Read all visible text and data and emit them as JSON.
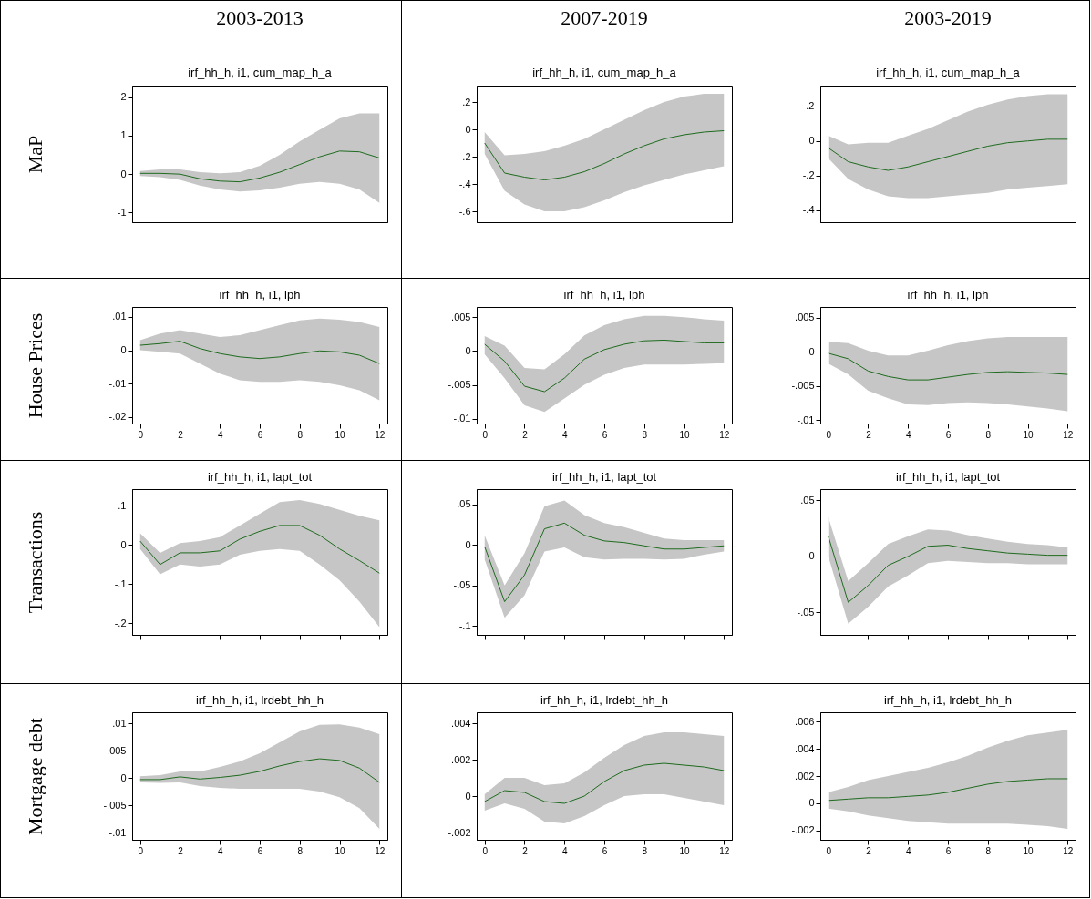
{
  "chart_data": [
    {
      "type": "line",
      "title": "2003-2013",
      "subtitle": "irf_hh_h, i1, cum_map_h_a",
      "ylabel": "MaP",
      "x": [
        0,
        1,
        2,
        3,
        4,
        5,
        6,
        7,
        8,
        9,
        10,
        11,
        12
      ],
      "xlim": [
        -0.4,
        12.4
      ],
      "tick_labels": "y",
      "ylim": [
        -1.25,
        2.3
      ],
      "yticks": [
        -1,
        0,
        1,
        2
      ],
      "series": [
        {
          "color": "#1f6b1f",
          "values": [
            0.02,
            0.02,
            0.0,
            -0.12,
            -0.18,
            -0.2,
            -0.1,
            0.05,
            0.25,
            0.45,
            0.6,
            0.58,
            0.42
          ],
          "lower": [
            -0.05,
            -0.08,
            -0.15,
            -0.3,
            -0.4,
            -0.45,
            -0.42,
            -0.35,
            -0.25,
            -0.2,
            -0.25,
            -0.4,
            -0.75
          ],
          "upper": [
            0.08,
            0.12,
            0.12,
            0.05,
            0.02,
            0.05,
            0.22,
            0.5,
            0.85,
            1.15,
            1.45,
            1.58,
            1.58
          ]
        }
      ]
    },
    {
      "type": "line",
      "title": "2007-2019",
      "subtitle": "irf_hh_h, i1, cum_map_h_a",
      "x": [
        0,
        1,
        2,
        3,
        4,
        5,
        6,
        7,
        8,
        9,
        10,
        11,
        12
      ],
      "xlim": [
        -0.4,
        12.4
      ],
      "tick_labels": "y",
      "ylim": [
        -0.68,
        0.32
      ],
      "yticks": [
        {
          "value": -0.6,
          "label": "-.6"
        },
        {
          "value": -0.4,
          "label": "-.4"
        },
        {
          "value": -0.2,
          "label": "-.2"
        },
        0,
        {
          "value": 0.2,
          "label": ".2"
        }
      ],
      "series": [
        {
          "color": "#1f6b1f",
          "values": [
            -0.1,
            -0.32,
            -0.35,
            -0.37,
            -0.35,
            -0.31,
            -0.25,
            -0.18,
            -0.12,
            -0.07,
            -0.04,
            -0.02,
            -0.01
          ],
          "lower": [
            -0.18,
            -0.45,
            -0.55,
            -0.6,
            -0.6,
            -0.57,
            -0.52,
            -0.46,
            -0.41,
            -0.37,
            -0.33,
            -0.3,
            -0.27
          ],
          "upper": [
            -0.02,
            -0.19,
            -0.18,
            -0.16,
            -0.12,
            -0.07,
            0.0,
            0.07,
            0.14,
            0.2,
            0.24,
            0.26,
            0.26
          ]
        }
      ]
    },
    {
      "type": "line",
      "title": "2003-2019",
      "subtitle": "irf_hh_h, i1, cum_map_h_a",
      "x": [
        0,
        1,
        2,
        3,
        4,
        5,
        6,
        7,
        8,
        9,
        10,
        11,
        12
      ],
      "xlim": [
        -0.4,
        12.4
      ],
      "tick_labels": "y",
      "ylim": [
        -0.47,
        0.32
      ],
      "yticks": [
        {
          "value": -0.4,
          "label": "-.4"
        },
        {
          "value": -0.2,
          "label": "-.2"
        },
        0,
        {
          "value": 0.2,
          "label": ".2"
        }
      ],
      "series": [
        {
          "color": "#1f6b1f",
          "values": [
            -0.04,
            -0.12,
            -0.15,
            -0.17,
            -0.15,
            -0.12,
            -0.09,
            -0.06,
            -0.03,
            -0.01,
            0.0,
            0.01,
            0.01
          ],
          "lower": [
            -0.1,
            -0.22,
            -0.28,
            -0.32,
            -0.33,
            -0.33,
            -0.32,
            -0.31,
            -0.3,
            -0.28,
            -0.27,
            -0.26,
            -0.25
          ],
          "upper": [
            0.03,
            -0.02,
            -0.01,
            -0.01,
            0.03,
            0.07,
            0.12,
            0.17,
            0.21,
            0.24,
            0.26,
            0.27,
            0.27
          ]
        }
      ]
    },
    {
      "type": "line",
      "subtitle": "irf_hh_h, i1, lph",
      "ylabel": "House Prices",
      "x": [
        0,
        1,
        2,
        3,
        4,
        5,
        6,
        7,
        8,
        9,
        10,
        11,
        12
      ],
      "xlim": [
        -0.4,
        12.4
      ],
      "xticks": [
        0,
        2,
        4,
        6,
        8,
        10,
        12
      ],
      "ylim": [
        -0.022,
        0.013
      ],
      "yticks": [
        {
          "value": -0.02,
          "label": "-.02"
        },
        {
          "value": -0.01,
          "label": "-.01"
        },
        0,
        {
          "value": 0.01,
          "label": ".01"
        }
      ],
      "series": [
        {
          "color": "#1f6b1f",
          "values": [
            0.0015,
            0.002,
            0.0027,
            0.0005,
            -0.001,
            -0.002,
            -0.0025,
            -0.002,
            -0.001,
            -0.0002,
            -0.0005,
            -0.0015,
            -0.004
          ],
          "lower": [
            0.0,
            -0.0005,
            -0.001,
            -0.004,
            -0.007,
            -0.009,
            -0.0095,
            -0.0095,
            -0.009,
            -0.0095,
            -0.0105,
            -0.012,
            -0.015
          ],
          "upper": [
            0.003,
            0.005,
            0.006,
            0.005,
            0.004,
            0.0045,
            0.006,
            0.0075,
            0.009,
            0.0095,
            0.0092,
            0.0085,
            0.007
          ]
        }
      ]
    },
    {
      "type": "line",
      "subtitle": "irf_hh_h, i1, lph",
      "x": [
        0,
        1,
        2,
        3,
        4,
        5,
        6,
        7,
        8,
        9,
        10,
        11,
        12
      ],
      "xlim": [
        -0.4,
        12.4
      ],
      "xticks": [
        0,
        2,
        4,
        6,
        8,
        10,
        12
      ],
      "ylim": [
        -0.0107,
        0.0065
      ],
      "yticks": [
        {
          "value": -0.01,
          "label": "-.01"
        },
        {
          "value": -0.005,
          "label": "-.005"
        },
        0,
        {
          "value": 0.005,
          "label": ".005"
        }
      ],
      "series": [
        {
          "color": "#1f6b1f",
          "values": [
            0.001,
            -0.0015,
            -0.0052,
            -0.006,
            -0.004,
            -0.0012,
            0.0002,
            0.001,
            0.0015,
            0.0016,
            0.0014,
            0.0012,
            0.0012
          ],
          "lower": [
            -0.0005,
            -0.004,
            -0.008,
            -0.009,
            -0.007,
            -0.005,
            -0.0035,
            -0.0025,
            -0.002,
            -0.002,
            -0.002,
            -0.0019,
            -0.0018
          ],
          "upper": [
            0.0022,
            0.0008,
            -0.0025,
            -0.0027,
            -0.0005,
            0.0023,
            0.0038,
            0.0047,
            0.0052,
            0.0052,
            0.005,
            0.0047,
            0.0045
          ]
        }
      ]
    },
    {
      "type": "line",
      "subtitle": "irf_hh_h, i1, lph",
      "x": [
        0,
        1,
        2,
        3,
        4,
        5,
        6,
        7,
        8,
        9,
        10,
        11,
        12
      ],
      "xlim": [
        -0.4,
        12.4
      ],
      "xticks": [
        0,
        2,
        4,
        6,
        8,
        10,
        12
      ],
      "ylim": [
        -0.0105,
        0.0066
      ],
      "yticks": [
        {
          "value": -0.01,
          "label": "-.01"
        },
        {
          "value": -0.005,
          "label": "-.005"
        },
        0,
        {
          "value": 0.005,
          "label": ".005"
        }
      ],
      "series": [
        {
          "color": "#1f6b1f",
          "values": [
            -0.0002,
            -0.001,
            -0.0028,
            -0.0036,
            -0.0041,
            -0.0041,
            -0.0037,
            -0.0033,
            -0.003,
            -0.0029,
            -0.003,
            -0.0031,
            -0.0033
          ],
          "lower": [
            -0.0017,
            -0.0033,
            -0.0057,
            -0.0068,
            -0.0077,
            -0.0078,
            -0.0075,
            -0.0074,
            -0.0075,
            -0.0077,
            -0.008,
            -0.0083,
            -0.0087
          ],
          "upper": [
            0.0015,
            0.0013,
            0.0002,
            -0.0005,
            -0.0005,
            0.0002,
            0.001,
            0.0016,
            0.002,
            0.0022,
            0.0022,
            0.0022,
            0.0022
          ]
        }
      ]
    },
    {
      "type": "line",
      "subtitle": "irf_hh_h, i1, lapt_tot",
      "ylabel": "Transactions",
      "x": [
        0,
        1,
        2,
        3,
        4,
        5,
        6,
        7,
        8,
        9,
        10,
        11,
        12
      ],
      "xlim": [
        -0.4,
        12.4
      ],
      "xticks": [
        0,
        2,
        4,
        6,
        8,
        10,
        12
      ],
      "tick_labels": "y",
      "ylim": [
        -0.23,
        0.143
      ],
      "yticks": [
        {
          "value": -0.2,
          "label": "-.2"
        },
        {
          "value": -0.1,
          "label": "-.1"
        },
        0,
        {
          "value": 0.1,
          "label": ".1"
        }
      ],
      "series": [
        {
          "color": "#1f6b1f",
          "values": [
            0.01,
            -0.05,
            -0.02,
            -0.02,
            -0.015,
            0.015,
            0.035,
            0.05,
            0.05,
            0.025,
            -0.01,
            -0.04,
            -0.072
          ],
          "lower": [
            -0.01,
            -0.075,
            -0.05,
            -0.055,
            -0.05,
            -0.025,
            -0.015,
            -0.01,
            -0.015,
            -0.05,
            -0.09,
            -0.145,
            -0.21
          ],
          "upper": [
            0.03,
            -0.02,
            0.005,
            0.01,
            0.02,
            0.05,
            0.08,
            0.11,
            0.115,
            0.105,
            0.09,
            0.075,
            0.063
          ]
        }
      ]
    },
    {
      "type": "line",
      "subtitle": "irf_hh_h, i1, lapt_tot",
      "x": [
        0,
        1,
        2,
        3,
        4,
        5,
        6,
        7,
        8,
        9,
        10,
        11,
        12
      ],
      "xlim": [
        -0.4,
        12.4
      ],
      "xticks": [
        0,
        2,
        4,
        6,
        8,
        10,
        12
      ],
      "tick_labels": "y",
      "ylim": [
        -0.111,
        0.069
      ],
      "yticks": [
        {
          "value": -0.1,
          "label": "-.1"
        },
        {
          "value": -0.05,
          "label": "-.05"
        },
        0,
        {
          "value": 0.05,
          "label": ".05"
        }
      ],
      "series": [
        {
          "color": "#1f6b1f",
          "values": [
            -0.002,
            -0.07,
            -0.037,
            0.02,
            0.027,
            0.012,
            0.005,
            0.003,
            -0.001,
            -0.005,
            -0.005,
            -0.003,
            -0.001
          ],
          "lower": [
            -0.018,
            -0.09,
            -0.062,
            -0.008,
            -0.003,
            -0.015,
            -0.018,
            -0.017,
            -0.017,
            -0.018,
            -0.017,
            -0.012,
            -0.008
          ],
          "upper": [
            0.012,
            -0.05,
            -0.01,
            0.048,
            0.055,
            0.037,
            0.027,
            0.022,
            0.015,
            0.008,
            0.006,
            0.006,
            0.006
          ]
        }
      ]
    },
    {
      "type": "line",
      "subtitle": "irf_hh_h, i1, lapt_tot",
      "x": [
        0,
        1,
        2,
        3,
        4,
        5,
        6,
        7,
        8,
        9,
        10,
        11,
        12
      ],
      "xlim": [
        -0.4,
        12.4
      ],
      "xticks": [
        0,
        2,
        4,
        6,
        8,
        10,
        12
      ],
      "tick_labels": "y",
      "ylim": [
        -0.07,
        0.06
      ],
      "yticks": [
        {
          "value": -0.05,
          "label": "-.05"
        },
        0,
        {
          "value": 0.05,
          "label": ".05"
        }
      ],
      "series": [
        {
          "color": "#1f6b1f",
          "values": [
            0.018,
            -0.041,
            -0.026,
            -0.008,
            0.0,
            0.009,
            0.01,
            0.007,
            0.005,
            0.003,
            0.002,
            0.001,
            0.001
          ],
          "lower": [
            0.0,
            -0.06,
            -0.045,
            -0.027,
            -0.017,
            -0.006,
            -0.004,
            -0.005,
            -0.006,
            -0.006,
            -0.007,
            -0.007,
            -0.007
          ],
          "upper": [
            0.035,
            -0.022,
            -0.006,
            0.011,
            0.018,
            0.024,
            0.023,
            0.019,
            0.016,
            0.013,
            0.011,
            0.01,
            0.008
          ]
        }
      ]
    },
    {
      "type": "line",
      "subtitle": "irf_hh_h, i1, lrdebt_hh_h",
      "ylabel": "Mortgage debt",
      "x": [
        0,
        1,
        2,
        3,
        4,
        5,
        6,
        7,
        8,
        9,
        10,
        11,
        12
      ],
      "xlim": [
        -0.4,
        12.4
      ],
      "xticks": [
        0,
        2,
        4,
        6,
        8,
        10,
        12
      ],
      "ylim": [
        -0.0113,
        0.012
      ],
      "yticks": [
        {
          "value": -0.01,
          "label": "-.01"
        },
        {
          "value": -0.005,
          "label": "-.005"
        },
        0,
        {
          "value": 0.005,
          "label": ".005"
        },
        {
          "value": 0.01,
          "label": ".01"
        }
      ],
      "series": [
        {
          "color": "#1f6b1f",
          "values": [
            -0.0003,
            -0.0003,
            0.0002,
            -0.0002,
            0.0001,
            0.0005,
            0.0012,
            0.0022,
            0.003,
            0.0035,
            0.0032,
            0.0018,
            -0.0008
          ],
          "lower": [
            -0.0008,
            -0.0009,
            -0.0008,
            -0.0015,
            -0.0018,
            -0.002,
            -0.002,
            -0.002,
            -0.002,
            -0.0025,
            -0.0035,
            -0.0055,
            -0.0093
          ],
          "upper": [
            0.0003,
            0.0005,
            0.0012,
            0.0012,
            0.002,
            0.003,
            0.0045,
            0.0065,
            0.0085,
            0.0097,
            0.0098,
            0.0092,
            0.008
          ]
        }
      ]
    },
    {
      "type": "line",
      "subtitle": "irf_hh_h, i1, lrdebt_hh_h",
      "x": [
        0,
        1,
        2,
        3,
        4,
        5,
        6,
        7,
        8,
        9,
        10,
        11,
        12
      ],
      "xlim": [
        -0.4,
        12.4
      ],
      "xticks": [
        0,
        2,
        4,
        6,
        8,
        10,
        12
      ],
      "ylim": [
        -0.0024,
        0.0046
      ],
      "yticks": [
        {
          "value": -0.002,
          "label": "-.002"
        },
        0,
        {
          "value": 0.002,
          "label": ".002"
        },
        {
          "value": 0.004,
          "label": ".004"
        }
      ],
      "series": [
        {
          "color": "#1f6b1f",
          "values": [
            -0.0003,
            0.0003,
            0.0002,
            -0.0003,
            -0.0004,
            0.0,
            0.0008,
            0.0014,
            0.0017,
            0.0018,
            0.0017,
            0.0016,
            0.0014
          ],
          "lower": [
            -0.0008,
            -0.0004,
            -0.0007,
            -0.0014,
            -0.0015,
            -0.0011,
            -0.0005,
            0.0,
            0.0001,
            0.0001,
            -0.0001,
            -0.0003,
            -0.0005
          ],
          "upper": [
            0.0001,
            0.001,
            0.001,
            0.0006,
            0.0007,
            0.0013,
            0.0021,
            0.0028,
            0.0033,
            0.0035,
            0.0035,
            0.0034,
            0.0033
          ]
        }
      ]
    },
    {
      "type": "line",
      "subtitle": "irf_hh_h, i1, lrdebt_hh_h",
      "x": [
        0,
        1,
        2,
        3,
        4,
        5,
        6,
        7,
        8,
        9,
        10,
        11,
        12
      ],
      "xlim": [
        -0.4,
        12.4
      ],
      "xticks": [
        0,
        2,
        4,
        6,
        8,
        10,
        12
      ],
      "ylim": [
        -0.0027,
        0.0067
      ],
      "yticks": [
        {
          "value": -0.002,
          "label": "-.002"
        },
        0,
        {
          "value": 0.002,
          "label": ".002"
        },
        {
          "value": 0.004,
          "label": ".004"
        },
        {
          "value": 0.006,
          "label": ".006"
        }
      ],
      "series": [
        {
          "color": "#1f6b1f",
          "values": [
            0.0002,
            0.0003,
            0.0004,
            0.0004,
            0.0005,
            0.0006,
            0.0008,
            0.0011,
            0.0014,
            0.0016,
            0.0017,
            0.0018,
            0.0018
          ],
          "lower": [
            -0.0004,
            -0.0006,
            -0.0009,
            -0.0011,
            -0.0013,
            -0.0014,
            -0.0015,
            -0.0015,
            -0.0015,
            -0.0015,
            -0.0016,
            -0.0017,
            -0.0019
          ],
          "upper": [
            0.0008,
            0.0012,
            0.0017,
            0.002,
            0.0023,
            0.0026,
            0.003,
            0.0035,
            0.0041,
            0.0046,
            0.005,
            0.0052,
            0.0054
          ]
        }
      ]
    }
  ]
}
